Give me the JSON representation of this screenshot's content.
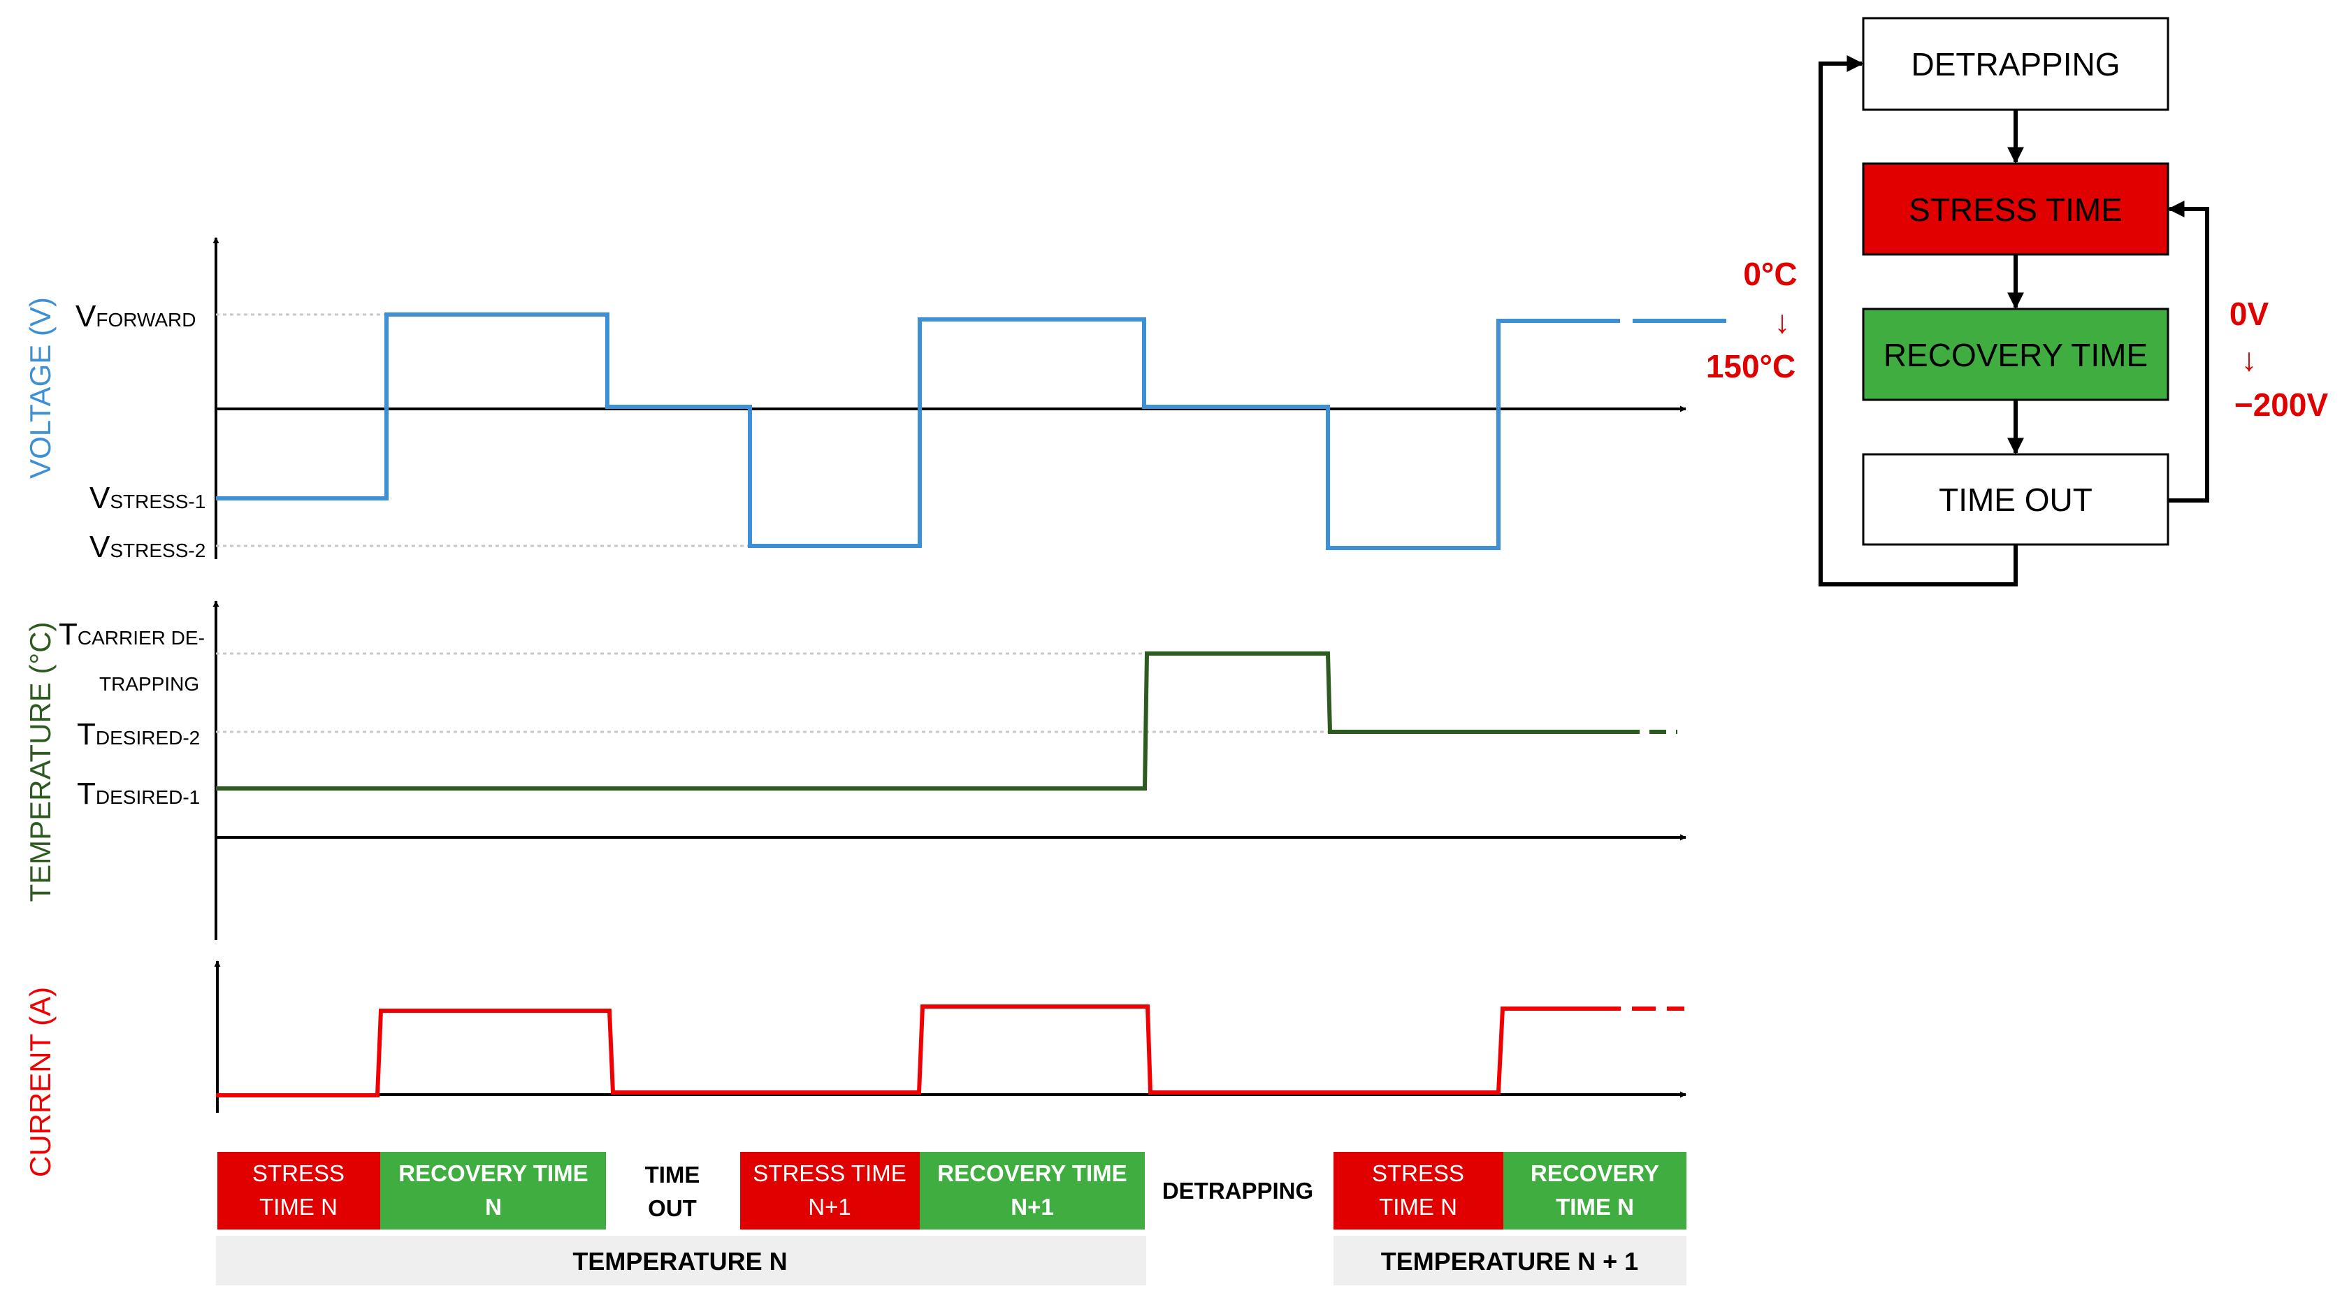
{
  "axes": {
    "voltage_title": "VOLTAGE (V)",
    "temperature_title": "TEMPERATURE (°C)",
    "current_title": "CURRENT (A)"
  },
  "voltage_levels": {
    "forward_main": "V",
    "forward_sub": "FORWARD",
    "stress1_main": "V",
    "stress1_sub": "STRESS-1",
    "stress2_main": "V",
    "stress2_sub": "STRESS-2"
  },
  "temperature_levels": {
    "detrap_main": "T",
    "detrap_sub1": "CARRIER DE-",
    "detrap_sub2": "TRAPPING",
    "desired2_main": "T",
    "desired2_sub": "DESIRED-2",
    "desired1_main": "T",
    "desired1_sub": "DESIRED-1"
  },
  "phases": {
    "stress_n_l1": "STRESS",
    "stress_n_l2": "TIME N",
    "recovery_n_l1": "RECOVERY TIME",
    "recovery_n_l2": "N",
    "timeout_l1": "TIME",
    "timeout_l2": "OUT",
    "stress_n1_l1": "STRESS TIME",
    "stress_n1_l2": "N+1",
    "recovery_n1_l1": "RECOVERY TIME",
    "recovery_n1_l2": "N+1",
    "detrapping": "DETRAPPING",
    "stress_n_b_l1": "STRESS",
    "stress_n_b_l2": "TIME N",
    "recovery_n_b_l1": "RECOVERY",
    "recovery_n_b_l2": "TIME N"
  },
  "temperature_bands": {
    "n": "TEMPERATURE N",
    "n_plus_1": "TEMPERATURE N + 1"
  },
  "flowchart": {
    "detrapping": "DETRAPPING",
    "stress": "STRESS TIME",
    "recovery": "RECOVERY TIME",
    "timeout": "TIME OUT",
    "temp_from": "0°C",
    "temp_arrow": "↓",
    "temp_to": "150°C",
    "volt_from": "0V",
    "volt_arrow": "↓",
    "volt_to": "−200V"
  },
  "colors": {
    "voltage": "#3d8fd6",
    "temperature": "#2d5a1f",
    "current": "#f00000",
    "stress": "#e00000",
    "recovery": "#3fad3f",
    "band": "#efefef",
    "annotation": "#e00000"
  }
}
